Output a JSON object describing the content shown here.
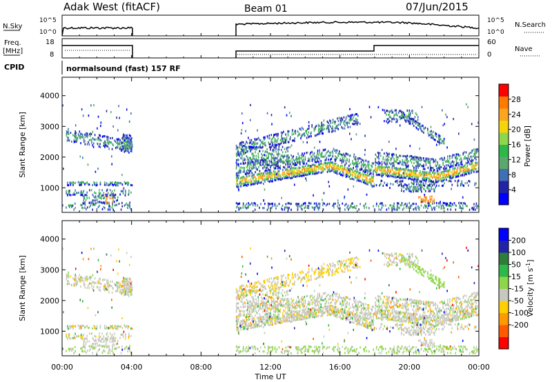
{
  "header": {
    "title": "Adak West (fitACF)",
    "beam": "Beam 01",
    "date": "07/Jun/2015"
  },
  "labels": {
    "nsky": "N.Sky",
    "nsearch": "N.Search",
    "freq": "Freq.",
    "freq_unit": "[MHz]",
    "nave": "Nave",
    "cpid": "CPID",
    "program": "normalsound (fast) 157 RF",
    "log_top": "10^5",
    "log_bottom": "10^0",
    "freq_top": "18",
    "freq_bottom": "8",
    "nave_top": "60",
    "nave_bottom": "0"
  },
  "colors": {
    "power": [
      "#0000ff",
      "#2323a8",
      "#3f6fb5",
      "#5aa86e",
      "#2fb84a",
      "#8ed64a",
      "#f4d40a",
      "#fca51e",
      "#ff7a00",
      "#ff0000"
    ],
    "velocity": [
      "#ff0000",
      "#ff5a00",
      "#ff9900",
      "#ffd000",
      "#c8c8c0",
      "#8ed64a",
      "#2fb84a",
      "#2e7d3a",
      "#2323a8",
      "#0000ff"
    ]
  },
  "chart_data": [
    {
      "type": "heatmap",
      "name": "power",
      "ylabel": "Slant Range [km]",
      "xlabel": "",
      "ylim": [
        200,
        4600
      ],
      "yticks": [
        1000,
        2000,
        3000,
        4000
      ],
      "xticks": [
        "00:00",
        "04:00",
        "08:00",
        "12:00",
        "16:00",
        "20:00",
        "00:00"
      ],
      "colorbar_label": "Power [dB]",
      "colorbar_ticks": [
        4,
        8,
        12,
        16,
        20,
        24,
        28
      ],
      "crange": [
        0,
        32
      ]
    },
    {
      "type": "heatmap",
      "name": "velocity",
      "ylabel": "Slant Range [km]",
      "xlabel": "Time UT",
      "ylim": [
        200,
        4600
      ],
      "yticks": [
        1000,
        2000,
        3000,
        4000
      ],
      "xticks": [
        "00:00",
        "04:00",
        "08:00",
        "12:00",
        "16:00",
        "20:00",
        "00:00"
      ],
      "colorbar_label": "Velocity [m s^-1]",
      "colorbar_ticks": [
        200,
        100,
        50,
        15,
        -15,
        -50,
        -100,
        -200
      ]
    }
  ]
}
